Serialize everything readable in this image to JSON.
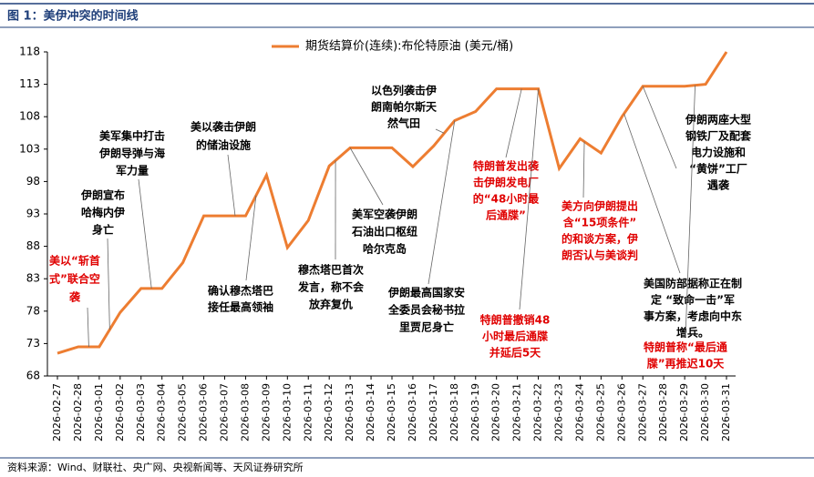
{
  "title": "图 1：美伊冲突的时间线",
  "source": "资料来源：Wind、财联社、央广网、央视新闻等、天风证券研究所",
  "chart_data": {
    "type": "line",
    "x": [
      "2026-02-27",
      "2026-02-28",
      "2026-03-01",
      "2026-03-02",
      "2026-03-03",
      "2026-03-04",
      "2026-03-05",
      "2026-03-06",
      "2026-03-07",
      "2026-03-08",
      "2026-03-09",
      "2026-03-10",
      "2026-03-11",
      "2026-03-12",
      "2026-03-13",
      "2026-03-14",
      "2026-03-15",
      "2026-03-16",
      "2026-03-17",
      "2026-03-18",
      "2026-03-19",
      "2026-03-20",
      "2026-03-21",
      "2026-03-22",
      "2026-03-23",
      "2026-03-24",
      "2026-03-25",
      "2026-03-26",
      "2026-03-27",
      "2026-03-28",
      "2026-03-29",
      "2026-03-30",
      "2026-03-31"
    ],
    "series": [
      {
        "name": "期货结算价(连续):布伦特原油 (美元/桶)",
        "color": "#ed7d31",
        "values": [
          71.5,
          72.5,
          72.5,
          77.8,
          81.5,
          81.5,
          85.5,
          92.7,
          92.7,
          92.7,
          99,
          87.8,
          92,
          100.4,
          103.2,
          103.2,
          103.2,
          100.3,
          103.5,
          107.4,
          108.8,
          112.3,
          112.3,
          112.3,
          100,
          104.6,
          102.4,
          108,
          112.7,
          112.7,
          112.7,
          113,
          118
        ]
      }
    ],
    "ylim": [
      68,
      118
    ],
    "yticks": [
      68,
      73,
      78,
      83,
      88,
      93,
      98,
      103,
      108,
      113,
      118
    ],
    "legend": "top",
    "annotations": [
      {
        "color": "#e00000",
        "lines": [
          "美以“斩首",
          "式”联合空",
          "袭"
        ]
      },
      {
        "color": "#000000",
        "lines": [
          "伊朗宣布",
          "哈梅内伊",
          "身亡"
        ]
      },
      {
        "color": "#000000",
        "lines": [
          "美军集中打击",
          "伊朗导弹与海",
          "军力量"
        ]
      },
      {
        "color": "#000000",
        "lines": [
          "美以袭击伊朗",
          "的储油设施"
        ]
      },
      {
        "color": "#000000",
        "lines": [
          "确认穆杰塔巴",
          "接任最高领袖"
        ]
      },
      {
        "color": "#000000",
        "lines": [
          "穆杰塔巴首次",
          "发言，称不会",
          "放弃复仇"
        ]
      },
      {
        "color": "#000000",
        "lines": [
          "美军空袭伊朗",
          "石油出口枢纽",
          "哈尔克岛"
        ]
      },
      {
        "color": "#000000",
        "lines": [
          "以色列袭击伊",
          "朗南帕尔斯天",
          "然气田"
        ]
      },
      {
        "color": "#000000",
        "lines": [
          "伊朗最高国家安",
          "全委员会秘书拉",
          "里贾尼身亡"
        ]
      },
      {
        "color": "#e00000",
        "lines": [
          "特朗普发出袭",
          "击伊朗发电厂",
          "的“48小时最",
          "后通牒”"
        ]
      },
      {
        "color": "#e00000",
        "lines": [
          "特朗普撤销48",
          "小时最后通牒",
          "并延后5天"
        ]
      },
      {
        "color": "#e00000",
        "lines": [
          "美方向伊朗提出",
          "含“15项条件”",
          "的和谈方案，伊",
          "朗否认与美谈判"
        ]
      },
      {
        "color": "#000000",
        "lines": [
          "伊朗两座大型",
          "钢铁厂及配套",
          "电力设施和",
          "“黄饼”工厂",
          "遇袭"
        ]
      },
      {
        "color": "#000000",
        "lines": [
          "美国防部据称正在制",
          "定 “致命一击”军",
          "事方案，考虑向中东",
          "增兵。"
        ]
      },
      {
        "color": "#e00000",
        "lines": [
          "特朗普称“最后通",
          "牒”再推迟10天"
        ]
      }
    ]
  }
}
